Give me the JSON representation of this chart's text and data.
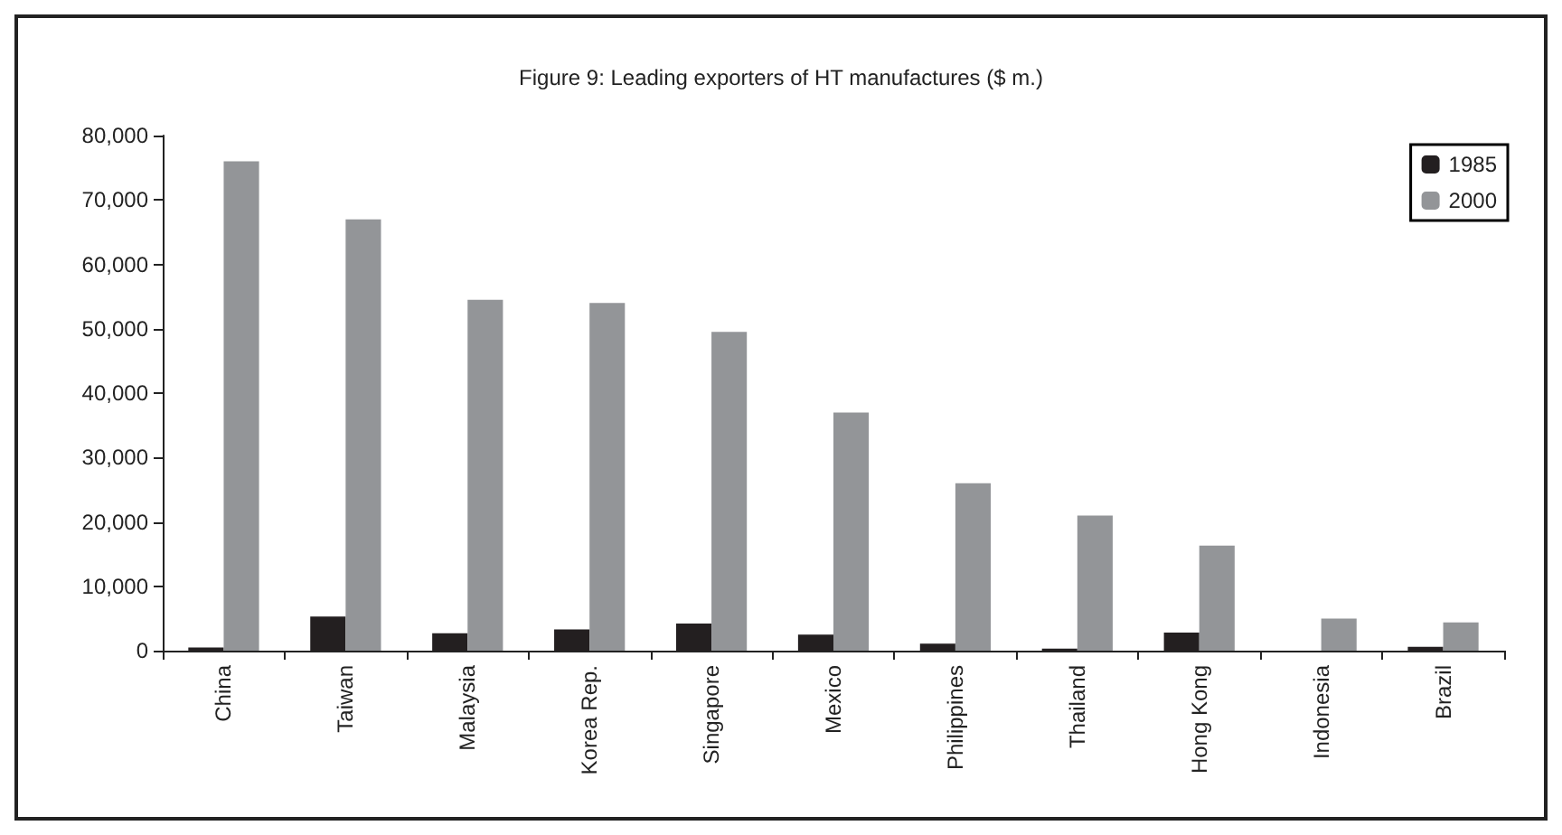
{
  "chart_data": {
    "type": "bar",
    "title": "Figure 9: Leading exporters of HT manufactures ($ m.)",
    "categories": [
      "China",
      "Taiwan",
      "Malaysia",
      "Korea Rep.",
      "Singapore",
      "Mexico",
      "Philippines",
      "Thailand",
      "Hong Kong",
      "Indonesia",
      "Brazil"
    ],
    "series": [
      {
        "name": "1985",
        "color": "#231f20",
        "values": [
          500,
          5300,
          2700,
          3300,
          4200,
          2500,
          1100,
          300,
          2800,
          0,
          600
        ]
      },
      {
        "name": "2000",
        "color": "#939598",
        "values": [
          76000,
          67000,
          54500,
          54000,
          49500,
          37000,
          26000,
          21000,
          16300,
          5000,
          4400
        ]
      }
    ],
    "ylim": [
      0,
      80000
    ],
    "yticks": [
      0,
      {
        "value": 10000,
        "label": "10,000"
      },
      {
        "value": 20000,
        "label": "20,000"
      },
      {
        "value": 30000,
        "label": "30,000"
      },
      {
        "value": 40000,
        "label": "40,000"
      },
      {
        "value": 50000,
        "label": "50,000"
      },
      {
        "value": 60000,
        "label": "60,000"
      },
      {
        "value": 70000,
        "label": "70,000"
      },
      {
        "value": 80000,
        "label": "80,000"
      }
    ],
    "grid": false,
    "legend": "top right"
  }
}
